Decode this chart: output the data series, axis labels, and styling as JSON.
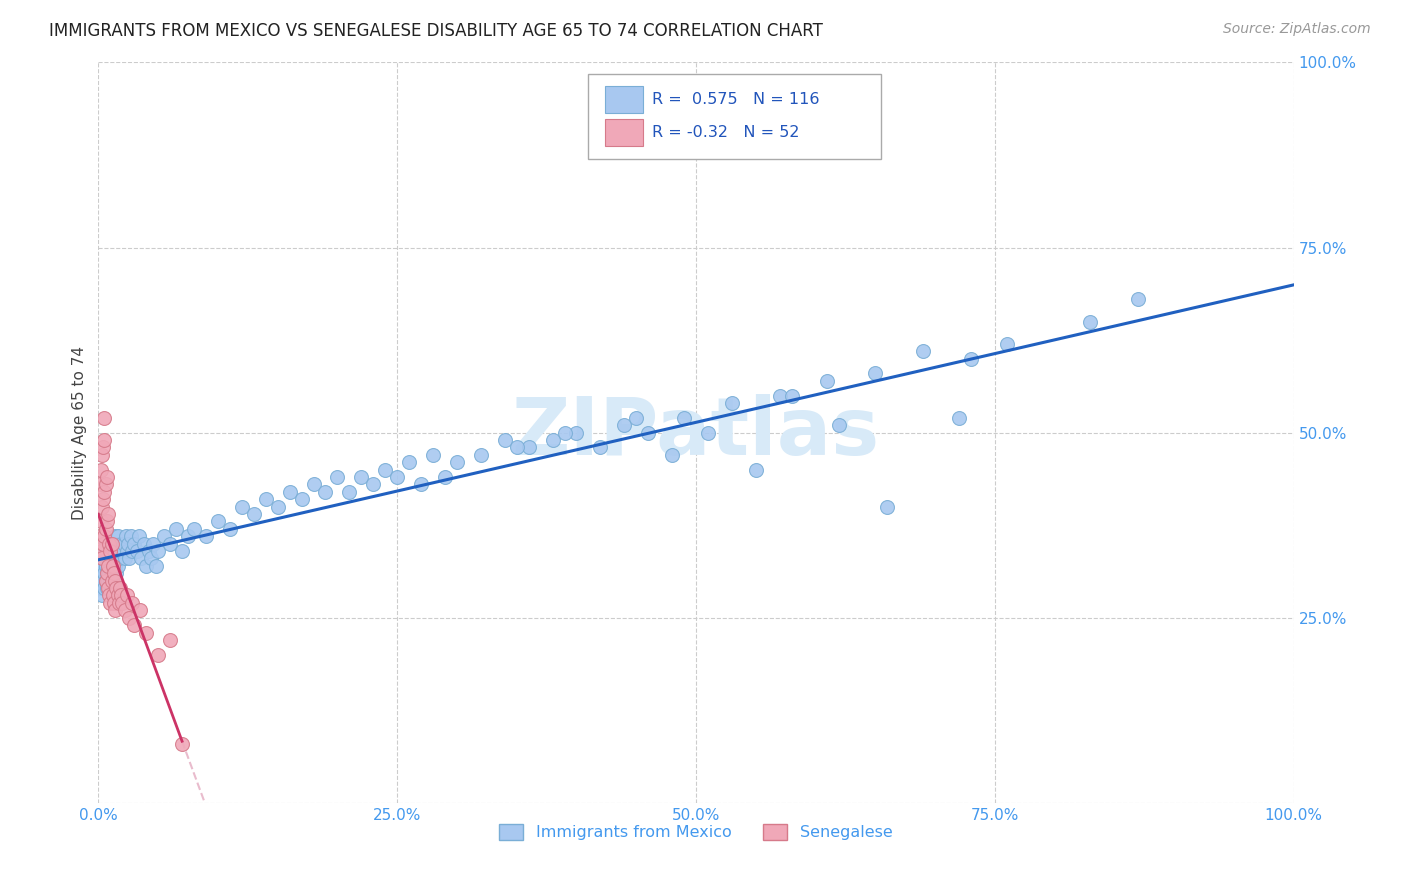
{
  "title": "IMMIGRANTS FROM MEXICO VS SENEGALESE DISABILITY AGE 65 TO 74 CORRELATION CHART",
  "source": "Source: ZipAtlas.com",
  "ylabel": "Disability Age 65 to 74",
  "xmin": 0.0,
  "xmax": 1.0,
  "ymin": 0.0,
  "ymax": 1.0,
  "xticks": [
    0.0,
    0.25,
    0.5,
    0.75,
    1.0
  ],
  "yticks": [
    0.25,
    0.5,
    0.75,
    1.0
  ],
  "xtick_labels": [
    "0.0%",
    "25.0%",
    "50.0%",
    "75.0%",
    "100.0%"
  ],
  "ytick_labels": [
    "25.0%",
    "50.0%",
    "75.0%",
    "100.0%"
  ],
  "blue_R": 0.575,
  "blue_N": 116,
  "pink_R": -0.32,
  "pink_N": 52,
  "blue_color": "#a8c8f0",
  "blue_edge": "#7aaed6",
  "pink_color": "#f0a8b8",
  "pink_edge": "#d67a8a",
  "trend_blue": "#2060c0",
  "trend_pink": "#cc3366",
  "trend_pink_dash": "#e0a0b8",
  "watermark_color": "#d8eaf8",
  "legend_label_blue": "Immigrants from Mexico",
  "legend_label_pink": "Senegalese",
  "blue_x": [
    0.001,
    0.002,
    0.002,
    0.003,
    0.003,
    0.004,
    0.004,
    0.005,
    0.005,
    0.005,
    0.006,
    0.006,
    0.006,
    0.007,
    0.007,
    0.007,
    0.008,
    0.008,
    0.008,
    0.009,
    0.009,
    0.009,
    0.01,
    0.01,
    0.01,
    0.011,
    0.011,
    0.012,
    0.012,
    0.013,
    0.013,
    0.014,
    0.014,
    0.015,
    0.015,
    0.016,
    0.016,
    0.017,
    0.018,
    0.019,
    0.02,
    0.021,
    0.022,
    0.023,
    0.024,
    0.025,
    0.026,
    0.027,
    0.028,
    0.03,
    0.032,
    0.034,
    0.036,
    0.038,
    0.04,
    0.042,
    0.044,
    0.046,
    0.048,
    0.05,
    0.055,
    0.06,
    0.065,
    0.07,
    0.075,
    0.08,
    0.09,
    0.1,
    0.11,
    0.12,
    0.13,
    0.14,
    0.15,
    0.16,
    0.17,
    0.18,
    0.19,
    0.2,
    0.21,
    0.22,
    0.23,
    0.24,
    0.25,
    0.26,
    0.27,
    0.28,
    0.29,
    0.3,
    0.32,
    0.34,
    0.36,
    0.38,
    0.4,
    0.42,
    0.44,
    0.46,
    0.49,
    0.53,
    0.57,
    0.61,
    0.65,
    0.69,
    0.73,
    0.76,
    0.83,
    0.87,
    0.35,
    0.39,
    0.45,
    0.48,
    0.51,
    0.55,
    0.58,
    0.62,
    0.66,
    0.72
  ],
  "blue_y": [
    0.3,
    0.31,
    0.29,
    0.32,
    0.28,
    0.3,
    0.33,
    0.29,
    0.31,
    0.34,
    0.3,
    0.32,
    0.35,
    0.29,
    0.31,
    0.34,
    0.3,
    0.32,
    0.35,
    0.29,
    0.31,
    0.34,
    0.3,
    0.32,
    0.35,
    0.31,
    0.33,
    0.3,
    0.34,
    0.31,
    0.35,
    0.32,
    0.36,
    0.31,
    0.35,
    0.32,
    0.36,
    0.33,
    0.34,
    0.35,
    0.34,
    0.35,
    0.33,
    0.36,
    0.34,
    0.35,
    0.33,
    0.36,
    0.34,
    0.35,
    0.34,
    0.36,
    0.33,
    0.35,
    0.32,
    0.34,
    0.33,
    0.35,
    0.32,
    0.34,
    0.36,
    0.35,
    0.37,
    0.34,
    0.36,
    0.37,
    0.36,
    0.38,
    0.37,
    0.4,
    0.39,
    0.41,
    0.4,
    0.42,
    0.41,
    0.43,
    0.42,
    0.44,
    0.42,
    0.44,
    0.43,
    0.45,
    0.44,
    0.46,
    0.43,
    0.47,
    0.44,
    0.46,
    0.47,
    0.49,
    0.48,
    0.49,
    0.5,
    0.48,
    0.51,
    0.5,
    0.52,
    0.54,
    0.55,
    0.57,
    0.58,
    0.61,
    0.6,
    0.62,
    0.65,
    0.68,
    0.48,
    0.5,
    0.52,
    0.47,
    0.5,
    0.45,
    0.55,
    0.51,
    0.4,
    0.52
  ],
  "pink_x": [
    0.001,
    0.001,
    0.002,
    0.002,
    0.002,
    0.003,
    0.003,
    0.003,
    0.004,
    0.004,
    0.004,
    0.005,
    0.005,
    0.005,
    0.006,
    0.006,
    0.006,
    0.007,
    0.007,
    0.007,
    0.008,
    0.008,
    0.008,
    0.009,
    0.009,
    0.01,
    0.01,
    0.011,
    0.011,
    0.012,
    0.012,
    0.013,
    0.013,
    0.014,
    0.014,
    0.015,
    0.016,
    0.017,
    0.018,
    0.019,
    0.02,
    0.022,
    0.024,
    0.026,
    0.028,
    0.03,
    0.035,
    0.04,
    0.05,
    0.06,
    0.005,
    0.07
  ],
  "pink_y": [
    0.36,
    0.43,
    0.38,
    0.45,
    0.34,
    0.4,
    0.47,
    0.33,
    0.41,
    0.48,
    0.35,
    0.42,
    0.49,
    0.36,
    0.43,
    0.37,
    0.3,
    0.44,
    0.31,
    0.38,
    0.32,
    0.39,
    0.29,
    0.35,
    0.28,
    0.34,
    0.27,
    0.35,
    0.3,
    0.32,
    0.28,
    0.31,
    0.27,
    0.3,
    0.26,
    0.29,
    0.28,
    0.27,
    0.29,
    0.28,
    0.27,
    0.26,
    0.28,
    0.25,
    0.27,
    0.24,
    0.26,
    0.23,
    0.2,
    0.22,
    0.52,
    0.08
  ]
}
